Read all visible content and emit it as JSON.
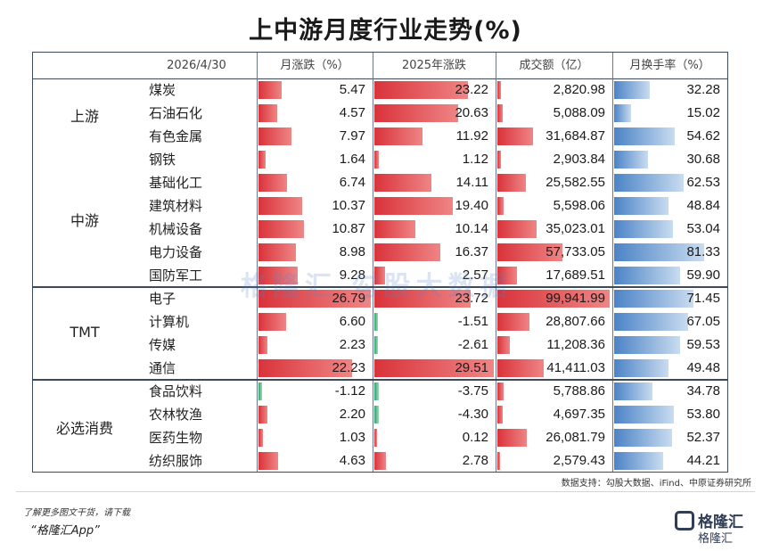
{
  "title": "上中游月度行业走势(%)",
  "headers": {
    "date": "2026/4/30",
    "monthly_change": "月涨跌（%）",
    "ytd_change": "2025年涨跌",
    "turnover": "成交额（亿）",
    "turnover_rate": "月换手率（%）"
  },
  "groups": [
    {
      "label": "上游"
    },
    {
      "label": "中游"
    },
    {
      "label": "TMT"
    },
    {
      "label": "必选消费"
    }
  ],
  "chart_data": {
    "type": "table",
    "title": "上中游月度行业走势(%)",
    "columns": [
      "月涨跌（%）",
      "2025年涨跌",
      "成交额（亿）",
      "月换手率（%）"
    ],
    "rows": [
      {
        "group": "上游",
        "name": "煤炭",
        "monthly": 5.47,
        "ytd": 23.22,
        "turnover": 2820.98,
        "rate": 32.28,
        "monthly_s": "5.47",
        "ytd_s": "23.22",
        "turnover_s": "2,820.98",
        "rate_s": "32.28"
      },
      {
        "group": "上游",
        "name": "石油石化",
        "monthly": 4.57,
        "ytd": 20.63,
        "turnover": 5088.09,
        "rate": 15.02,
        "monthly_s": "4.57",
        "ytd_s": "20.63",
        "turnover_s": "5,088.09",
        "rate_s": "15.02"
      },
      {
        "group": "上游",
        "name": "有色金属",
        "monthly": 7.97,
        "ytd": 11.92,
        "turnover": 31684.87,
        "rate": 54.62,
        "monthly_s": "7.97",
        "ytd_s": "11.92",
        "turnover_s": "31,684.87",
        "rate_s": "54.62"
      },
      {
        "group": "上游",
        "name": "钢铁",
        "monthly": 1.64,
        "ytd": 1.12,
        "turnover": 2903.84,
        "rate": 30.68,
        "monthly_s": "1.64",
        "ytd_s": "1.12",
        "turnover_s": "2,903.84",
        "rate_s": "30.68"
      },
      {
        "group": "中游",
        "name": "基础化工",
        "monthly": 6.74,
        "ytd": 14.11,
        "turnover": 25582.55,
        "rate": 62.53,
        "monthly_s": "6.74",
        "ytd_s": "14.11",
        "turnover_s": "25,582.55",
        "rate_s": "62.53"
      },
      {
        "group": "中游",
        "name": "建筑材料",
        "monthly": 10.37,
        "ytd": 19.4,
        "turnover": 5598.06,
        "rate": 48.84,
        "monthly_s": "10.37",
        "ytd_s": "19.40",
        "turnover_s": "5,598.06",
        "rate_s": "48.84"
      },
      {
        "group": "中游",
        "name": "机械设备",
        "monthly": 10.87,
        "ytd": 10.14,
        "turnover": 35023.01,
        "rate": 53.04,
        "monthly_s": "10.87",
        "ytd_s": "10.14",
        "turnover_s": "35,023.01",
        "rate_s": "53.04"
      },
      {
        "group": "中游",
        "name": "电力设备",
        "monthly": 8.98,
        "ytd": 16.37,
        "turnover": 57733.05,
        "rate": 81.33,
        "monthly_s": "8.98",
        "ytd_s": "16.37",
        "turnover_s": "57,733.05",
        "rate_s": "81.33"
      },
      {
        "group": "中游",
        "name": "国防军工",
        "monthly": 9.28,
        "ytd": 2.57,
        "turnover": 17689.51,
        "rate": 59.9,
        "monthly_s": "9.28",
        "ytd_s": "2.57",
        "turnover_s": "17,689.51",
        "rate_s": "59.90"
      },
      {
        "group": "TMT",
        "name": "电子",
        "monthly": 26.79,
        "ytd": 23.72,
        "turnover": 99941.99,
        "rate": 71.45,
        "monthly_s": "26.79",
        "ytd_s": "23.72",
        "turnover_s": "99,941.99",
        "rate_s": "71.45"
      },
      {
        "group": "TMT",
        "name": "计算机",
        "monthly": 6.6,
        "ytd": -1.51,
        "turnover": 28807.66,
        "rate": 67.05,
        "monthly_s": "6.60",
        "ytd_s": "-1.51",
        "turnover_s": "28,807.66",
        "rate_s": "67.05"
      },
      {
        "group": "TMT",
        "name": "传媒",
        "monthly": 2.23,
        "ytd": -2.61,
        "turnover": 11208.36,
        "rate": 59.53,
        "monthly_s": "2.23",
        "ytd_s": "-2.61",
        "turnover_s": "11,208.36",
        "rate_s": "59.53"
      },
      {
        "group": "TMT",
        "name": "通信",
        "monthly": 22.23,
        "ytd": 29.51,
        "turnover": 41411.03,
        "rate": 49.48,
        "monthly_s": "22.23",
        "ytd_s": "29.51",
        "turnover_s": "41,411.03",
        "rate_s": "49.48"
      },
      {
        "group": "必选消费",
        "name": "食品饮料",
        "monthly": -1.12,
        "ytd": -3.75,
        "turnover": 5788.86,
        "rate": 34.78,
        "monthly_s": "-1.12",
        "ytd_s": "-3.75",
        "turnover_s": "5,788.86",
        "rate_s": "34.78"
      },
      {
        "group": "必选消费",
        "name": "农林牧渔",
        "monthly": 2.2,
        "ytd": -4.3,
        "turnover": 4697.35,
        "rate": 53.8,
        "monthly_s": "2.20",
        "ytd_s": "-4.30",
        "turnover_s": "4,697.35",
        "rate_s": "53.80"
      },
      {
        "group": "必选消费",
        "name": "医药生物",
        "monthly": 1.03,
        "ytd": 0.12,
        "turnover": 26081.79,
        "rate": 52.37,
        "monthly_s": "1.03",
        "ytd_s": "0.12",
        "turnover_s": "26,081.79",
        "rate_s": "52.37"
      },
      {
        "group": "必选消费",
        "name": "纺织服饰",
        "monthly": 4.63,
        "ytd": 2.78,
        "turnover": 2579.43,
        "rate": 44.21,
        "monthly_s": "4.63",
        "ytd_s": "2.78",
        "turnover_s": "2,579.43",
        "rate_s": "44.21"
      }
    ],
    "colors": {
      "positive": "#d9333a",
      "negative": "#2fa36a",
      "rate": "#4b83c6"
    }
  },
  "watermark": "格隆汇 勾股大数据",
  "watermark_url": "www.gogudata.com",
  "source": "数据支持：勾股大数据、iFind、中原证券研究所",
  "footer": {
    "line1": "了解更多图文干货，请下载",
    "line2": "“格隆汇App”",
    "logo_text": "格隆汇",
    "logo_sub": "格隆汇"
  }
}
